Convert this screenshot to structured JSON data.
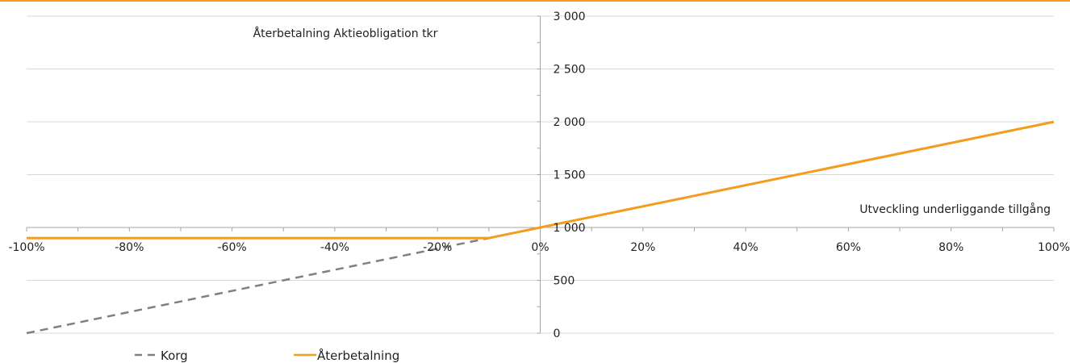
{
  "colors": {
    "accent": "#F39C1E",
    "korg": "#808080",
    "gridline": "#D9D9D9",
    "axis": "#A6A6A6",
    "text": "#222222"
  },
  "chart_data": {
    "type": "line",
    "title": "Återbetalning Aktieobligation tkr",
    "xlabel": "Utveckling underliggande tillgång",
    "ylabel": "",
    "xlim": [
      -1.0,
      1.0
    ],
    "ylim": [
      0,
      3000
    ],
    "x_ticks": [
      -1.0,
      -0.8,
      -0.6,
      -0.4,
      -0.2,
      0.0,
      0.2,
      0.4,
      0.6,
      0.8,
      1.0
    ],
    "x_tick_labels": [
      "-100%",
      "-80%",
      "-60%",
      "-40%",
      "-20%",
      "0%",
      "20%",
      "40%",
      "60%",
      "80%",
      "100%"
    ],
    "y_ticks": [
      0,
      500,
      1000,
      1500,
      2000,
      2500,
      3000
    ],
    "y_tick_labels": [
      "0",
      "500",
      "1 000",
      "1 500",
      "2 000",
      "2 500",
      "3 000"
    ],
    "grid": true,
    "legend_position": "bottom-left",
    "series": [
      {
        "name": "Korg",
        "style": "dashed",
        "color": "#808080",
        "x": [
          -1.0,
          -0.1
        ],
        "y": [
          0,
          900
        ]
      },
      {
        "name": "Återbetalning",
        "style": "solid",
        "color": "#F39C1E",
        "x": [
          -1.0,
          -0.1,
          0.0,
          1.0
        ],
        "y": [
          900,
          900,
          1000,
          2000
        ]
      }
    ]
  }
}
